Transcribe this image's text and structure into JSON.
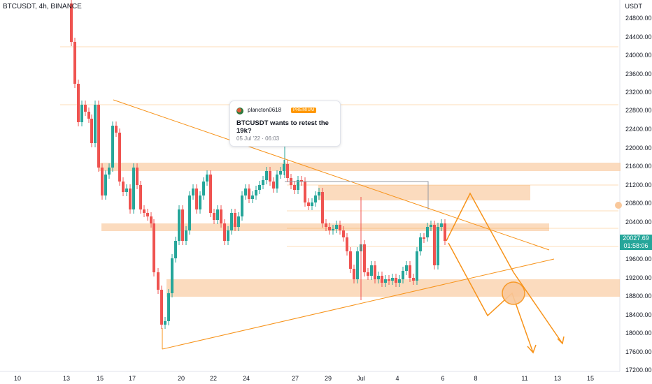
{
  "header": {
    "symbol": "BTCUSDT, 4h, BINANCE",
    "currency": "USDT"
  },
  "price_axis": {
    "ticks": [
      "24800.00",
      "24400.00",
      "24000.00",
      "23600.00",
      "23200.00",
      "22800.00",
      "22400.00",
      "22000.00",
      "21600.00",
      "21200.00",
      "20800.00",
      "20400.00",
      "19600.00",
      "19200.00",
      "18800.00",
      "18400.00",
      "18000.00",
      "17600.00",
      "17200.00"
    ],
    "current_price": "20027.69",
    "countdown": "01:58:06"
  },
  "time_axis": {
    "ticks": [
      "10",
      "13",
      "15",
      "17",
      "20",
      "22",
      "24",
      "27",
      "29",
      "Jul",
      "4",
      "6",
      "8",
      "11",
      "13",
      "15"
    ]
  },
  "idea_card": {
    "author": "plancton0618",
    "badge": "PREMIUM",
    "title": "BTCUSDT wants to retest the 19k?",
    "date": "05 Jul '22 · 06:03"
  },
  "colors": {
    "up": "#26a69a",
    "down": "#ef5350",
    "zone": "#f9c89b",
    "trend": "#f7931a",
    "badge": "#26a69a"
  }
}
